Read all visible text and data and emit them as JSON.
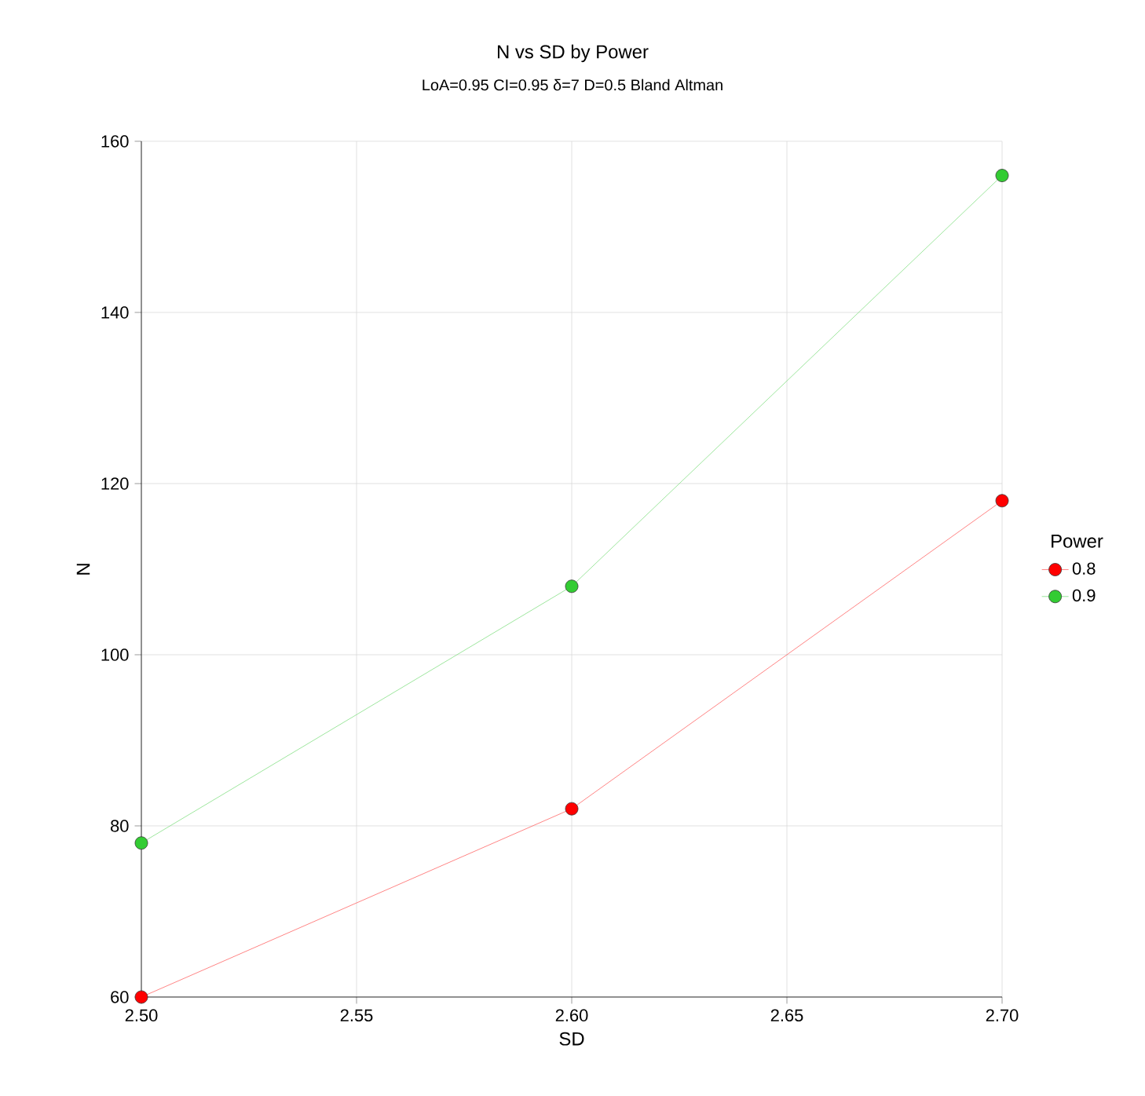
{
  "chart_data": {
    "type": "line",
    "title": "N vs SD by Power",
    "subtitle": "LoA=0.95 CI=0.95 δ=7 D=0.5 Bland Altman",
    "xlabel": "SD",
    "ylabel": "N",
    "legend_title": "Power",
    "x": [
      2.5,
      2.6,
      2.7
    ],
    "series": [
      {
        "name": "0.8",
        "color": "#ff0000",
        "values": [
          60,
          82,
          118
        ]
      },
      {
        "name": "0.9",
        "color": "#33cc33",
        "values": [
          78,
          108,
          156
        ]
      }
    ],
    "xlim": [
      2.5,
      2.7
    ],
    "xticks": [
      {
        "value": 2.5,
        "label": "2.50"
      },
      {
        "value": 2.55,
        "label": "2.55"
      },
      {
        "value": 2.6,
        "label": "2.60"
      },
      {
        "value": 2.65,
        "label": "2.65"
      },
      {
        "value": 2.7,
        "label": "2.70"
      }
    ],
    "ylim": [
      60,
      160
    ],
    "yticks": [
      60,
      80,
      100,
      120,
      140,
      160
    ],
    "grid": true,
    "legend": "right",
    "marker": "circle",
    "line_style": "solid"
  }
}
